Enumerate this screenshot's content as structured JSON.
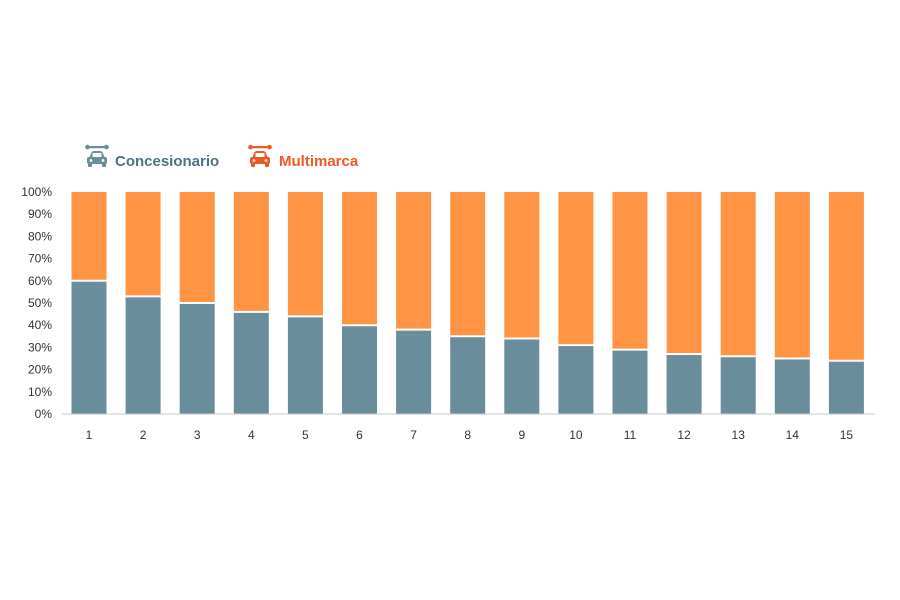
{
  "chart_data": {
    "type": "bar",
    "stacked": true,
    "title": "",
    "xlabel": "",
    "ylabel": "",
    "ylim": [
      0,
      100
    ],
    "y_ticks": [
      "0%",
      "10%",
      "20%",
      "30%",
      "40%",
      "50%",
      "60%",
      "70%",
      "80%",
      "90%",
      "100%"
    ],
    "categories": [
      "1",
      "2",
      "3",
      "4",
      "5",
      "6",
      "7",
      "8",
      "9",
      "10",
      "11",
      "12",
      "13",
      "14",
      "15"
    ],
    "series": [
      {
        "name": "Concesionario",
        "color": "#6a8d9b",
        "icon": "car-wrench-icon",
        "values": [
          60,
          53,
          50,
          46,
          44,
          40,
          38,
          35,
          34,
          31,
          29,
          27,
          26,
          25,
          24
        ]
      },
      {
        "name": "Multimarca",
        "color": "#ff9444",
        "icon": "car-wrench-icon",
        "values": [
          40,
          47,
          50,
          54,
          56,
          60,
          62,
          65,
          66,
          69,
          71,
          73,
          74,
          75,
          76
        ]
      }
    ],
    "legend": {
      "position": "top-left",
      "text_colors": [
        "#4d7384",
        "#ef5a24"
      ]
    },
    "grid": false
  }
}
